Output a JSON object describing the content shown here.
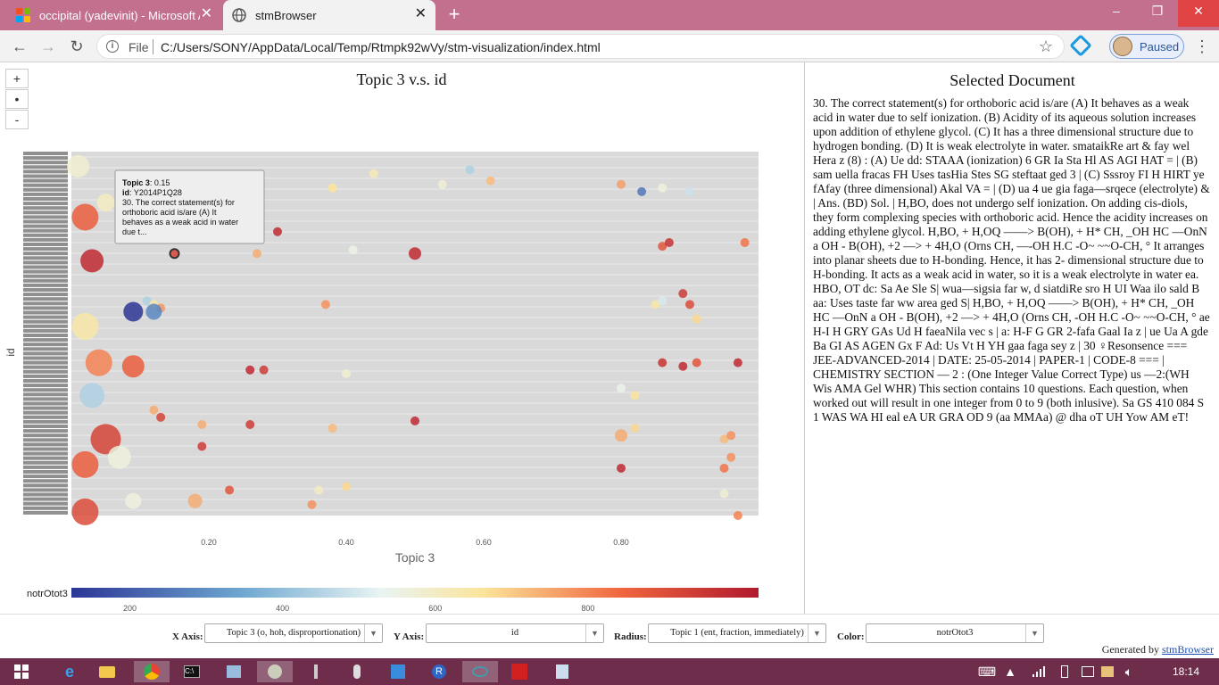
{
  "browser": {
    "tabs": [
      {
        "title": "occipital (yadevinit) - Microsoft A",
        "active": false
      },
      {
        "title": "stmBrowser",
        "active": true
      }
    ],
    "url_scheme": "File",
    "url": "C:/Users/SONY/AppData/Local/Temp/Rtmpk92wVy/stm-visualization/index.html",
    "profile_label": "Paused",
    "window_controls": [
      "–",
      "❐",
      "✕"
    ]
  },
  "zoom_controls": [
    "+",
    "•",
    "-"
  ],
  "chart": {
    "title": "Topic 3 v.s. id",
    "xlabel": "Topic 3",
    "ylabel": "id",
    "x_ticks": [
      "0.20",
      "0.40",
      "0.60",
      "0.80"
    ],
    "colorbar_label": "notrOtot3",
    "colorbar_ticks": [
      "200",
      "400",
      "600",
      "800"
    ],
    "tooltip": {
      "topic_label": "Topic 3",
      "topic_value": "0.15",
      "id_label": "id",
      "id_value": "Y2014P1Q28",
      "snippet": "30. The correct statement(s) for orthoboric acid is/are (A) It behaves as a weak acid in water due t..."
    }
  },
  "chart_data": {
    "type": "scatter",
    "title": "Topic 3 v.s. id",
    "xlabel": "Topic 3",
    "ylabel": "id",
    "xlim": [
      0.0,
      1.0
    ],
    "x_ticks": [
      0.2,
      0.4,
      0.6,
      0.8
    ],
    "color_scale": {
      "label": "notrOtot3",
      "ticks": [
        200,
        400,
        600,
        800
      ],
      "range": [
        100,
        1000
      ]
    },
    "points": [
      {
        "x": 0.15,
        "y": 0.72,
        "c": 900,
        "r": 1
      },
      {
        "x": 0.27,
        "y": 0.72,
        "c": 720,
        "r": 1
      },
      {
        "x": 0.3,
        "y": 0.78,
        "c": 960,
        "r": 1
      },
      {
        "x": 0.38,
        "y": 0.9,
        "c": 640,
        "r": 1
      },
      {
        "x": 0.44,
        "y": 0.94,
        "c": 600,
        "r": 1
      },
      {
        "x": 0.5,
        "y": 0.72,
        "c": 960,
        "r": 1.4
      },
      {
        "x": 0.54,
        "y": 0.91,
        "c": 560,
        "r": 1
      },
      {
        "x": 0.58,
        "y": 0.95,
        "c": 420,
        "r": 1
      },
      {
        "x": 0.61,
        "y": 0.92,
        "c": 700,
        "r": 1
      },
      {
        "x": 0.41,
        "y": 0.73,
        "c": 520,
        "r": 1
      },
      {
        "x": 0.8,
        "y": 0.91,
        "c": 740,
        "r": 1
      },
      {
        "x": 0.83,
        "y": 0.89,
        "c": 230,
        "r": 1
      },
      {
        "x": 0.86,
        "y": 0.9,
        "c": 540,
        "r": 1
      },
      {
        "x": 0.9,
        "y": 0.89,
        "c": 460,
        "r": 1
      },
      {
        "x": 0.86,
        "y": 0.74,
        "c": 860,
        "r": 1
      },
      {
        "x": 0.87,
        "y": 0.75,
        "c": 940,
        "r": 1
      },
      {
        "x": 0.98,
        "y": 0.75,
        "c": 800,
        "r": 1
      },
      {
        "x": 0.89,
        "y": 0.61,
        "c": 920,
        "r": 1
      },
      {
        "x": 0.9,
        "y": 0.58,
        "c": 880,
        "r": 1
      },
      {
        "x": 0.85,
        "y": 0.58,
        "c": 620,
        "r": 1
      },
      {
        "x": 0.86,
        "y": 0.59,
        "c": 480,
        "r": 1
      },
      {
        "x": 0.91,
        "y": 0.54,
        "c": 660,
        "r": 1
      },
      {
        "x": 0.11,
        "y": 0.59,
        "c": 420,
        "r": 1
      },
      {
        "x": 0.12,
        "y": 0.58,
        "c": 620,
        "r": 1
      },
      {
        "x": 0.13,
        "y": 0.57,
        "c": 750,
        "r": 1
      },
      {
        "x": 0.37,
        "y": 0.58,
        "c": 760,
        "r": 1
      },
      {
        "x": 0.26,
        "y": 0.4,
        "c": 960,
        "r": 1
      },
      {
        "x": 0.28,
        "y": 0.4,
        "c": 920,
        "r": 1
      },
      {
        "x": 0.4,
        "y": 0.39,
        "c": 560,
        "r": 1
      },
      {
        "x": 0.86,
        "y": 0.42,
        "c": 940,
        "r": 1
      },
      {
        "x": 0.89,
        "y": 0.41,
        "c": 960,
        "r": 1
      },
      {
        "x": 0.91,
        "y": 0.42,
        "c": 860,
        "r": 1
      },
      {
        "x": 0.97,
        "y": 0.42,
        "c": 960,
        "r": 1
      },
      {
        "x": 0.8,
        "y": 0.35,
        "c": 520,
        "r": 1
      },
      {
        "x": 0.82,
        "y": 0.33,
        "c": 640,
        "r": 1
      },
      {
        "x": 0.12,
        "y": 0.29,
        "c": 720,
        "r": 1
      },
      {
        "x": 0.13,
        "y": 0.27,
        "c": 900,
        "r": 1
      },
      {
        "x": 0.19,
        "y": 0.25,
        "c": 720,
        "r": 1
      },
      {
        "x": 0.26,
        "y": 0.25,
        "c": 920,
        "r": 1
      },
      {
        "x": 0.38,
        "y": 0.24,
        "c": 700,
        "r": 1
      },
      {
        "x": 0.5,
        "y": 0.26,
        "c": 960,
        "r": 1
      },
      {
        "x": 0.19,
        "y": 0.19,
        "c": 920,
        "r": 1
      },
      {
        "x": 0.82,
        "y": 0.24,
        "c": 660,
        "r": 1
      },
      {
        "x": 0.8,
        "y": 0.22,
        "c": 720,
        "r": 1.4
      },
      {
        "x": 0.95,
        "y": 0.21,
        "c": 700,
        "r": 1
      },
      {
        "x": 0.96,
        "y": 0.22,
        "c": 760,
        "r": 1
      },
      {
        "x": 0.96,
        "y": 0.16,
        "c": 760,
        "r": 1
      },
      {
        "x": 0.95,
        "y": 0.13,
        "c": 800,
        "r": 1
      },
      {
        "x": 0.8,
        "y": 0.13,
        "c": 960,
        "r": 1
      },
      {
        "x": 0.23,
        "y": 0.07,
        "c": 860,
        "r": 1
      },
      {
        "x": 0.36,
        "y": 0.07,
        "c": 580,
        "r": 1
      },
      {
        "x": 0.4,
        "y": 0.08,
        "c": 660,
        "r": 1
      },
      {
        "x": 0.35,
        "y": 0.03,
        "c": 760,
        "r": 1
      },
      {
        "x": 0.18,
        "y": 0.04,
        "c": 720,
        "r": 1.6
      },
      {
        "x": 0.95,
        "y": 0.06,
        "c": 560,
        "r": 1
      },
      {
        "x": 0.97,
        "y": 0.0,
        "c": 780,
        "r": 1
      },
      {
        "x": 0.09,
        "y": 0.56,
        "c": 100,
        "r": 2.2
      },
      {
        "x": 0.12,
        "y": 0.56,
        "c": 260,
        "r": 1.8
      },
      {
        "x": 0.01,
        "y": 0.96,
        "c": 560,
        "r": 2.5
      },
      {
        "x": 0.02,
        "y": 0.82,
        "c": 840,
        "r": 3
      },
      {
        "x": 0.03,
        "y": 0.7,
        "c": 960,
        "r": 2.6
      },
      {
        "x": 0.02,
        "y": 0.52,
        "c": 620,
        "r": 3
      },
      {
        "x": 0.04,
        "y": 0.42,
        "c": 780,
        "r": 3
      },
      {
        "x": 0.03,
        "y": 0.33,
        "c": 420,
        "r": 2.8
      },
      {
        "x": 0.05,
        "y": 0.21,
        "c": 900,
        "r": 3.4
      },
      {
        "x": 0.02,
        "y": 0.14,
        "c": 840,
        "r": 3
      },
      {
        "x": 0.02,
        "y": 0.01,
        "c": 880,
        "r": 3
      },
      {
        "x": 0.07,
        "y": 0.16,
        "c": 540,
        "r": 2.6
      },
      {
        "x": 0.09,
        "y": 0.41,
        "c": 840,
        "r": 2.5
      },
      {
        "x": 0.05,
        "y": 0.86,
        "c": 580,
        "r": 2
      },
      {
        "x": 0.09,
        "y": 0.04,
        "c": 540,
        "r": 1.8
      }
    ]
  },
  "document": {
    "heading": "Selected Document",
    "text": "30. The correct statement(s) for orthoboric acid is/are (A) It behaves as a weak acid in water due to self ionization. (B) Acidity of its aqueous solution increases upon addition of ethylene glycol. (C) It has a three dimensional structure due to hydrogen bonding. (D) It is weak electrolyte in water. smataikRe art & fay wel Hera z (8) : (A) Ue dd: STAAA (ionization) 6 GR Ia Sta Hl AS AGI HAT = | (B) sam uella fracas FH Uses tasHia Stes SG steftaat ged 3 | (C) Sssroy FI H HIRT ye fAfay (three dimensional) Akal VA = | (D) ua 4 ue gia faga—srqece (electrolyte) & | Ans. (BD) Sol. | H,BO, does not undergo self ionization. On adding cis-diols, they form complexing species with orthoboric acid. Hence the acidity increases on adding ethylene glycol. H,BO, + H,OQ ——> B(OH), + H* CH, _OH HC —OnN a OH - B(OH), +2 —> + 4H,O (Orns CH, —-OH H.C -O~ ~~O-CH, ° It arranges into planar sheets due to H-bonding. Hence, it has 2- dimensional structure due to H-bonding. It acts as a weak acid in water, so it is a weak electrolyte in water ea. HBO, OT dc: Sa Ae Sle S| wua—sigsia far w, d siatdiRe sro H UI Waa ilo sald B aa: Uses taste far ww area ged S| H,BO, + H,OQ ——> B(OH), + H* CH, _OH HC —OnN a OH - B(OH), +2 —> + 4H,O (Orns CH, -OH H.C -O~ ~~O-CH, ° ae H-I H GRY GAs Ud H faeaNila vec s | a: H-F G GR 2-fafa Gaal Ia z | ue Ua A gde Ba GI AS AGEN Gx F Ad: Us Vt H YH gaa faga sey z | 30 ♀Resonsence === JEE-ADVANCED-2014 | DATE: 25-05-2014 | PAPER-1 | CODE-8 === | CHEMISTRY SECTION — 2 : (One Integer Value Correct Type) us —2:(WH Wis AMA Gel WHR) This section contains 10 questions. Each question, when worked out will result in one integer from 0 to 9 (both inlusive). Sa GS 410 084 S 1 WAS WA HI eal eA UR GRA OD 9 (aa MMAa) @ dha oT UH Yow AM eT!"
  },
  "controls": {
    "x_axis_label": "X Axis:",
    "x_axis_value": "Topic 3 (o, hoh, disproportionation)",
    "y_axis_label": "Y Axis:",
    "y_axis_value": "id",
    "radius_label": "Radius:",
    "radius_value": "Topic 1 (ent, fraction, immediately)",
    "color_label": "Color:",
    "color_value": "notrOtot3",
    "generated_prefix": "Generated by ",
    "generated_link": "stmBrowser"
  },
  "taskbar": {
    "clock": "18:14",
    "apps": [
      "start",
      "ie",
      "explorer",
      "chrome",
      "cmd",
      "network",
      "python",
      "torch",
      "mic",
      "azure",
      "r",
      "search",
      "pdf",
      "notes"
    ]
  }
}
